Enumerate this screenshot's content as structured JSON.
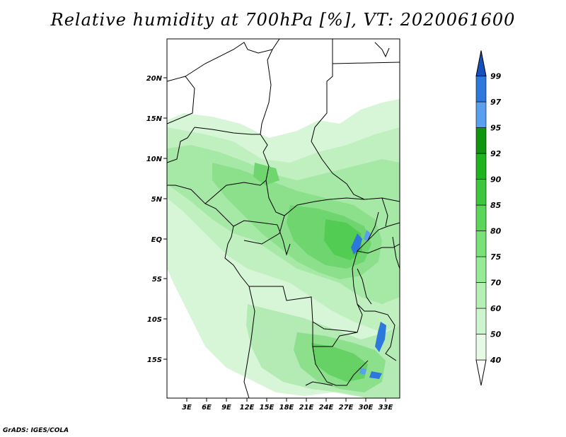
{
  "title": "Relative humidity at 700hPa [%], VT: 2020061600",
  "credit": "GrADS: IGES/COLA",
  "map": {
    "lat_labels": [
      "20N",
      "15N",
      "10N",
      "5N",
      "EQ",
      "5S",
      "10S",
      "15S"
    ],
    "lon_labels": [
      "3E",
      "6E",
      "9E",
      "12E",
      "15E",
      "18E",
      "21E",
      "24E",
      "27E",
      "30E",
      "33E"
    ]
  },
  "colorbar": {
    "levels": [
      "40",
      "50",
      "60",
      "70",
      "75",
      "80",
      "85",
      "90",
      "92",
      "95",
      "97",
      "99"
    ],
    "colors": [
      "#ffffff",
      "#e6fae6",
      "#cdf5cd",
      "#b4f0b4",
      "#96eb96",
      "#78e178",
      "#5ad75a",
      "#3cc83c",
      "#1eb41e",
      "#0f960f",
      "#5aa0f0",
      "#2d78dc",
      "#1450be"
    ]
  }
}
